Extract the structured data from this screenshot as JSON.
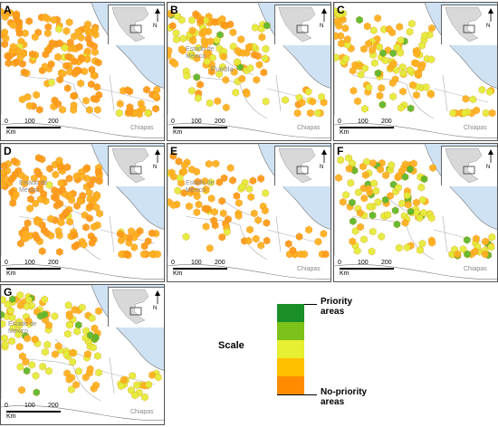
{
  "panels": [
    {
      "letter": "A",
      "labels": [
        {
          "text": "Chiapas",
          "cls": "chiapas"
        }
      ]
    },
    {
      "letter": "B",
      "labels": [
        {
          "text": "Estado de México",
          "cls": "edomex"
        },
        {
          "text": "Puebla",
          "cls": "puebla"
        },
        {
          "text": "Chiapas",
          "cls": "chiapas"
        }
      ]
    },
    {
      "letter": "C",
      "labels": [
        {
          "text": "Chiapas",
          "cls": "chiapas"
        }
      ]
    },
    {
      "letter": "D",
      "labels": [
        {
          "text": "Estado de México",
          "cls": "edomex"
        }
      ]
    },
    {
      "letter": "E",
      "labels": [
        {
          "text": "Estado de México",
          "cls": "edomex"
        },
        {
          "text": "Chiapas",
          "cls": "chiapas"
        }
      ]
    },
    {
      "letter": "F",
      "labels": [
        {
          "text": "Chiapas",
          "cls": "chiapas"
        }
      ]
    },
    {
      "letter": "G",
      "labels": [
        {
          "text": "Estado de México",
          "cls": "edomex"
        },
        {
          "text": "Chiapas",
          "cls": "chiapas"
        }
      ]
    }
  ],
  "scale_bar": {
    "ticks": [
      "0",
      "100",
      "200"
    ],
    "unit": "Km"
  },
  "inset": {
    "north": "N"
  },
  "legend": {
    "title": "Scale",
    "top_label": "Priority areas",
    "bottom_label": "No-priority areas",
    "colors": [
      "#1a8f2a",
      "#7cc21a",
      "#e6ef30",
      "#ffc000",
      "#ff8c00"
    ]
  },
  "colors": {
    "sea": "#cfe2f3",
    "land": "#ffffff",
    "border": "#b0b0b0",
    "hex_orange": "#f39c12",
    "hex_dark": "#e67e22"
  }
}
